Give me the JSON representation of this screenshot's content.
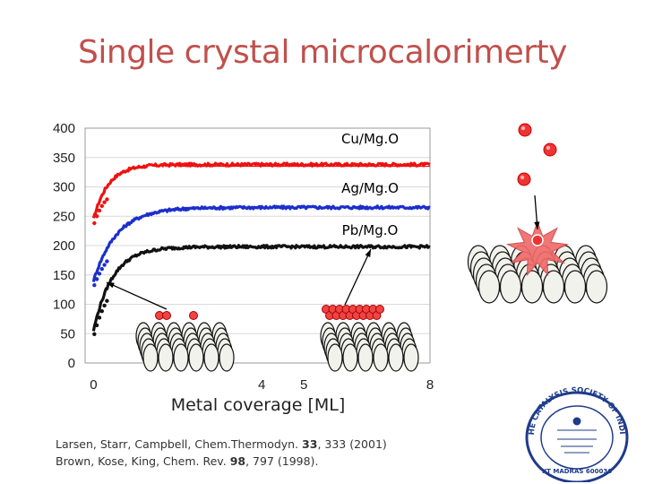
{
  "slide": {
    "title": "Single crystal microcalorimerty"
  },
  "chart_data": {
    "type": "line",
    "xlabel": "Metal coverage [ML]",
    "ylabel": "",
    "xlim": [
      -0.2,
      8
    ],
    "ylim": [
      0,
      400
    ],
    "xticks": [
      "0",
      "4",
      "5",
      "8"
    ],
    "yticks": [
      "400",
      "350",
      "300",
      "250",
      "200",
      "150",
      "100",
      "50",
      "0"
    ],
    "series": [
      {
        "name": "Cu/Mg.O",
        "color": "#ee1111",
        "plateau": 338,
        "start": 245,
        "rise": 0.35,
        "reference": 335
      },
      {
        "name": "Ag/Mg.O",
        "color": "#1c2fcc",
        "plateau": 265,
        "start": 140,
        "rise": 0.55,
        "reference": 265
      },
      {
        "name": "Pb/Mg.O",
        "color": "#111111",
        "plateau": 198,
        "start": 55,
        "rise": 0.45,
        "reference": null
      }
    ]
  },
  "references": [
    {
      "pre": "Larsen, Starr, Campbell, Chem.Thermodyn. ",
      "vol": "33",
      "post": ", 333 (2001)"
    },
    {
      "pre": "Brown, Kose, King, Chem. Rev. ",
      "vol": "98",
      "post": ", 797 (1998)."
    }
  ],
  "logo": {
    "ring_text": "THE CATALYSIS SOCIETY OF INDIA",
    "center_text": "IIT MADRAS 600036",
    "color": "#1f3b8a"
  }
}
